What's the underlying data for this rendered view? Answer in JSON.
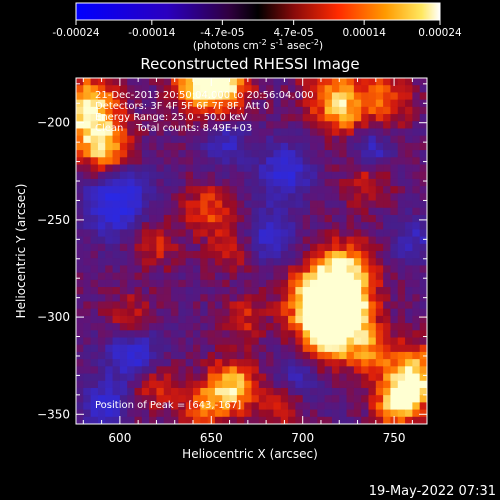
{
  "chart_data": {
    "type": "heatmap",
    "title": "Reconstructed RHESSI Image",
    "xlabel": "Heliocentric X (arcsec)",
    "ylabel": "Heliocentric Y (arcsec)",
    "xlim": [
      576,
      768
    ],
    "ylim": [
      -355,
      -177
    ],
    "x_ticks": [
      600,
      650,
      700,
      750
    ],
    "y_ticks": [
      -200,
      -250,
      -300,
      -350
    ],
    "colorbar": {
      "ticks": [
        "-0.00024",
        "-0.00014",
        "-4.7e-05",
        "4.7e-05",
        "0.00014",
        "0.00024"
      ],
      "tick_values": [
        -0.00024,
        -0.00014,
        -4.7e-05,
        4.7e-05,
        0.00014,
        0.00024
      ],
      "range": [
        -0.00024,
        0.00024
      ],
      "unit_label_parts": [
        "(photons cm",
        "-2",
        " s",
        "-1",
        " asec",
        "-2",
        ")"
      ]
    },
    "annotations": [
      "21-Dec-2013 20:50:04.000 to 20:56:04.000",
      "Detectors: 3F 4F 5F 6F 7F 8F, Att 0",
      "Energy Range: 25.0 - 50.0 keV",
      "Clean    Total counts: 8.49E+03"
    ],
    "peak_label": "Position of Peak = [643,-167]",
    "footer_timestamp": "19-May-2022 07:31",
    "colors": {
      "negative": "#2020ff",
      "low": "#3a1a8c",
      "mid": "#c01818",
      "high": "#ff8a00",
      "peak": "#ffffe0"
    },
    "blobs": [
      {
        "x": 582,
        "y": -193,
        "amp": 1.0,
        "s": 12
      },
      {
        "x": 592,
        "y": -214,
        "amp": 0.8,
        "s": 10
      },
      {
        "x": 643,
        "y": -182,
        "amp": 0.9,
        "s": 10
      },
      {
        "x": 660,
        "y": -181,
        "amp": 0.75,
        "s": 9
      },
      {
        "x": 715,
        "y": -184,
        "amp": 0.55,
        "s": 11
      },
      {
        "x": 722,
        "y": -195,
        "amp": 0.5,
        "s": 9
      },
      {
        "x": 745,
        "y": -188,
        "amp": 0.6,
        "s": 10
      },
      {
        "x": 648,
        "y": -245,
        "amp": 0.55,
        "s": 9
      },
      {
        "x": 618,
        "y": -262,
        "amp": 0.45,
        "s": 9
      },
      {
        "x": 660,
        "y": -265,
        "amp": 0.4,
        "s": 8
      },
      {
        "x": 735,
        "y": -230,
        "amp": 0.45,
        "s": 9
      },
      {
        "x": 722,
        "y": -278,
        "amp": 0.9,
        "s": 12
      },
      {
        "x": 707,
        "y": -293,
        "amp": 1.0,
        "s": 12
      },
      {
        "x": 725,
        "y": -297,
        "amp": 0.85,
        "s": 10
      },
      {
        "x": 712,
        "y": -313,
        "amp": 0.8,
        "s": 10
      },
      {
        "x": 735,
        "y": -316,
        "amp": 0.55,
        "s": 9
      },
      {
        "x": 760,
        "y": -330,
        "amp": 0.95,
        "s": 11
      },
      {
        "x": 752,
        "y": -345,
        "amp": 0.8,
        "s": 9
      },
      {
        "x": 668,
        "y": -300,
        "amp": 0.4,
        "s": 8
      },
      {
        "x": 605,
        "y": -300,
        "amp": 0.4,
        "s": 9
      },
      {
        "x": 618,
        "y": -335,
        "amp": 0.45,
        "s": 9
      },
      {
        "x": 662,
        "y": -336,
        "amp": 0.85,
        "s": 10
      },
      {
        "x": 645,
        "y": -346,
        "amp": 0.5,
        "s": 9
      },
      {
        "x": 690,
        "y": -345,
        "amp": 0.45,
        "s": 8
      }
    ],
    "negatives": [
      {
        "x": 598,
        "y": -240,
        "amp": 0.8,
        "s": 12
      },
      {
        "x": 690,
        "y": -225,
        "amp": 0.6,
        "s": 10
      },
      {
        "x": 683,
        "y": -258,
        "amp": 0.55,
        "s": 9
      },
      {
        "x": 607,
        "y": -320,
        "amp": 0.7,
        "s": 10
      },
      {
        "x": 592,
        "y": -345,
        "amp": 0.6,
        "s": 8
      },
      {
        "x": 738,
        "y": -215,
        "amp": 0.5,
        "s": 8
      },
      {
        "x": 760,
        "y": -260,
        "amp": 0.4,
        "s": 8
      },
      {
        "x": 698,
        "y": -330,
        "amp": 0.5,
        "s": 9
      },
      {
        "x": 657,
        "y": -210,
        "amp": 0.45,
        "s": 8
      }
    ]
  }
}
